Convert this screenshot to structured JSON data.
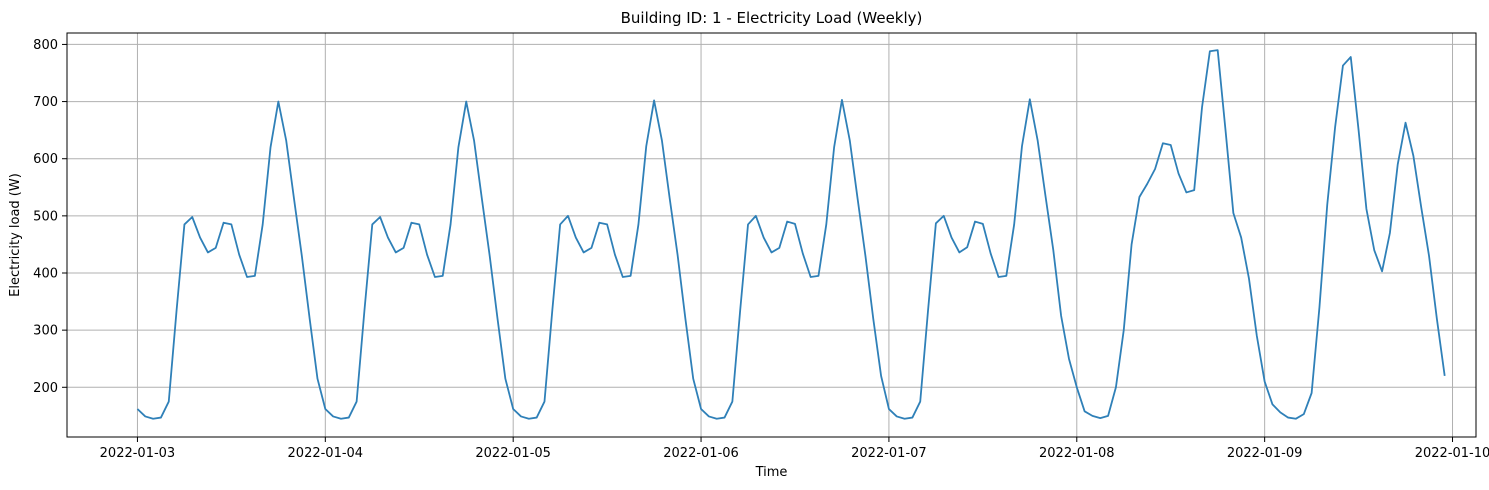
{
  "chart_data": {
    "type": "line",
    "title": "Building ID: 1 - Electricity Load (Weekly)",
    "xlabel": "Time",
    "ylabel": "Electricity load (W)",
    "x_start": "2022-01-03T00:00",
    "x_step_hours": 1,
    "xlim": [
      "2022-01-02T15:00",
      "2022-01-10T03:00"
    ],
    "ylim": [
      113,
      820
    ],
    "x_ticks": [
      "2022-01-03",
      "2022-01-04",
      "2022-01-05",
      "2022-01-06",
      "2022-01-07",
      "2022-01-08",
      "2022-01-09",
      "2022-01-10"
    ],
    "y_ticks": [
      200,
      300,
      400,
      500,
      600,
      700,
      800
    ],
    "grid": true,
    "line_color": "#2f80b8",
    "series": [
      {
        "values": [
          162,
          149,
          145,
          147,
          175,
          335,
          485,
          498,
          462,
          436,
          444,
          488,
          485,
          432,
          393,
          395,
          485,
          620,
          700,
          632,
          530,
          430,
          320,
          215,
          162,
          149,
          145,
          147,
          175,
          335,
          485,
          498,
          462,
          436,
          444,
          488,
          485,
          432,
          393,
          395,
          485,
          620,
          700,
          632,
          530,
          430,
          320,
          215,
          162,
          149,
          145,
          147,
          175,
          335,
          485,
          500,
          462,
          436,
          444,
          488,
          485,
          432,
          393,
          395,
          485,
          622,
          702,
          632,
          530,
          432,
          320,
          215,
          162,
          149,
          145,
          147,
          175,
          335,
          485,
          500,
          462,
          436,
          444,
          490,
          486,
          434,
          393,
          395,
          485,
          620,
          703,
          632,
          530,
          430,
          320,
          220,
          162,
          149,
          145,
          147,
          175,
          335,
          487,
          500,
          462,
          436,
          445,
          490,
          486,
          434,
          393,
          395,
          485,
          622,
          704,
          632,
          535,
          440,
          325,
          250,
          200,
          158,
          150,
          146,
          150,
          200,
          300,
          450,
          533,
          556,
          582,
          627,
          624,
          574,
          541,
          545,
          690,
          788,
          790,
          650,
          505,
          462,
          390,
          290,
          210,
          170,
          156,
          147,
          145,
          153,
          190,
          340,
          520,
          655,
          763,
          778,
          650,
          512,
          440,
          403,
          470,
          590,
          663,
          605,
          515,
          430,
          320,
          220
        ]
      }
    ]
  }
}
